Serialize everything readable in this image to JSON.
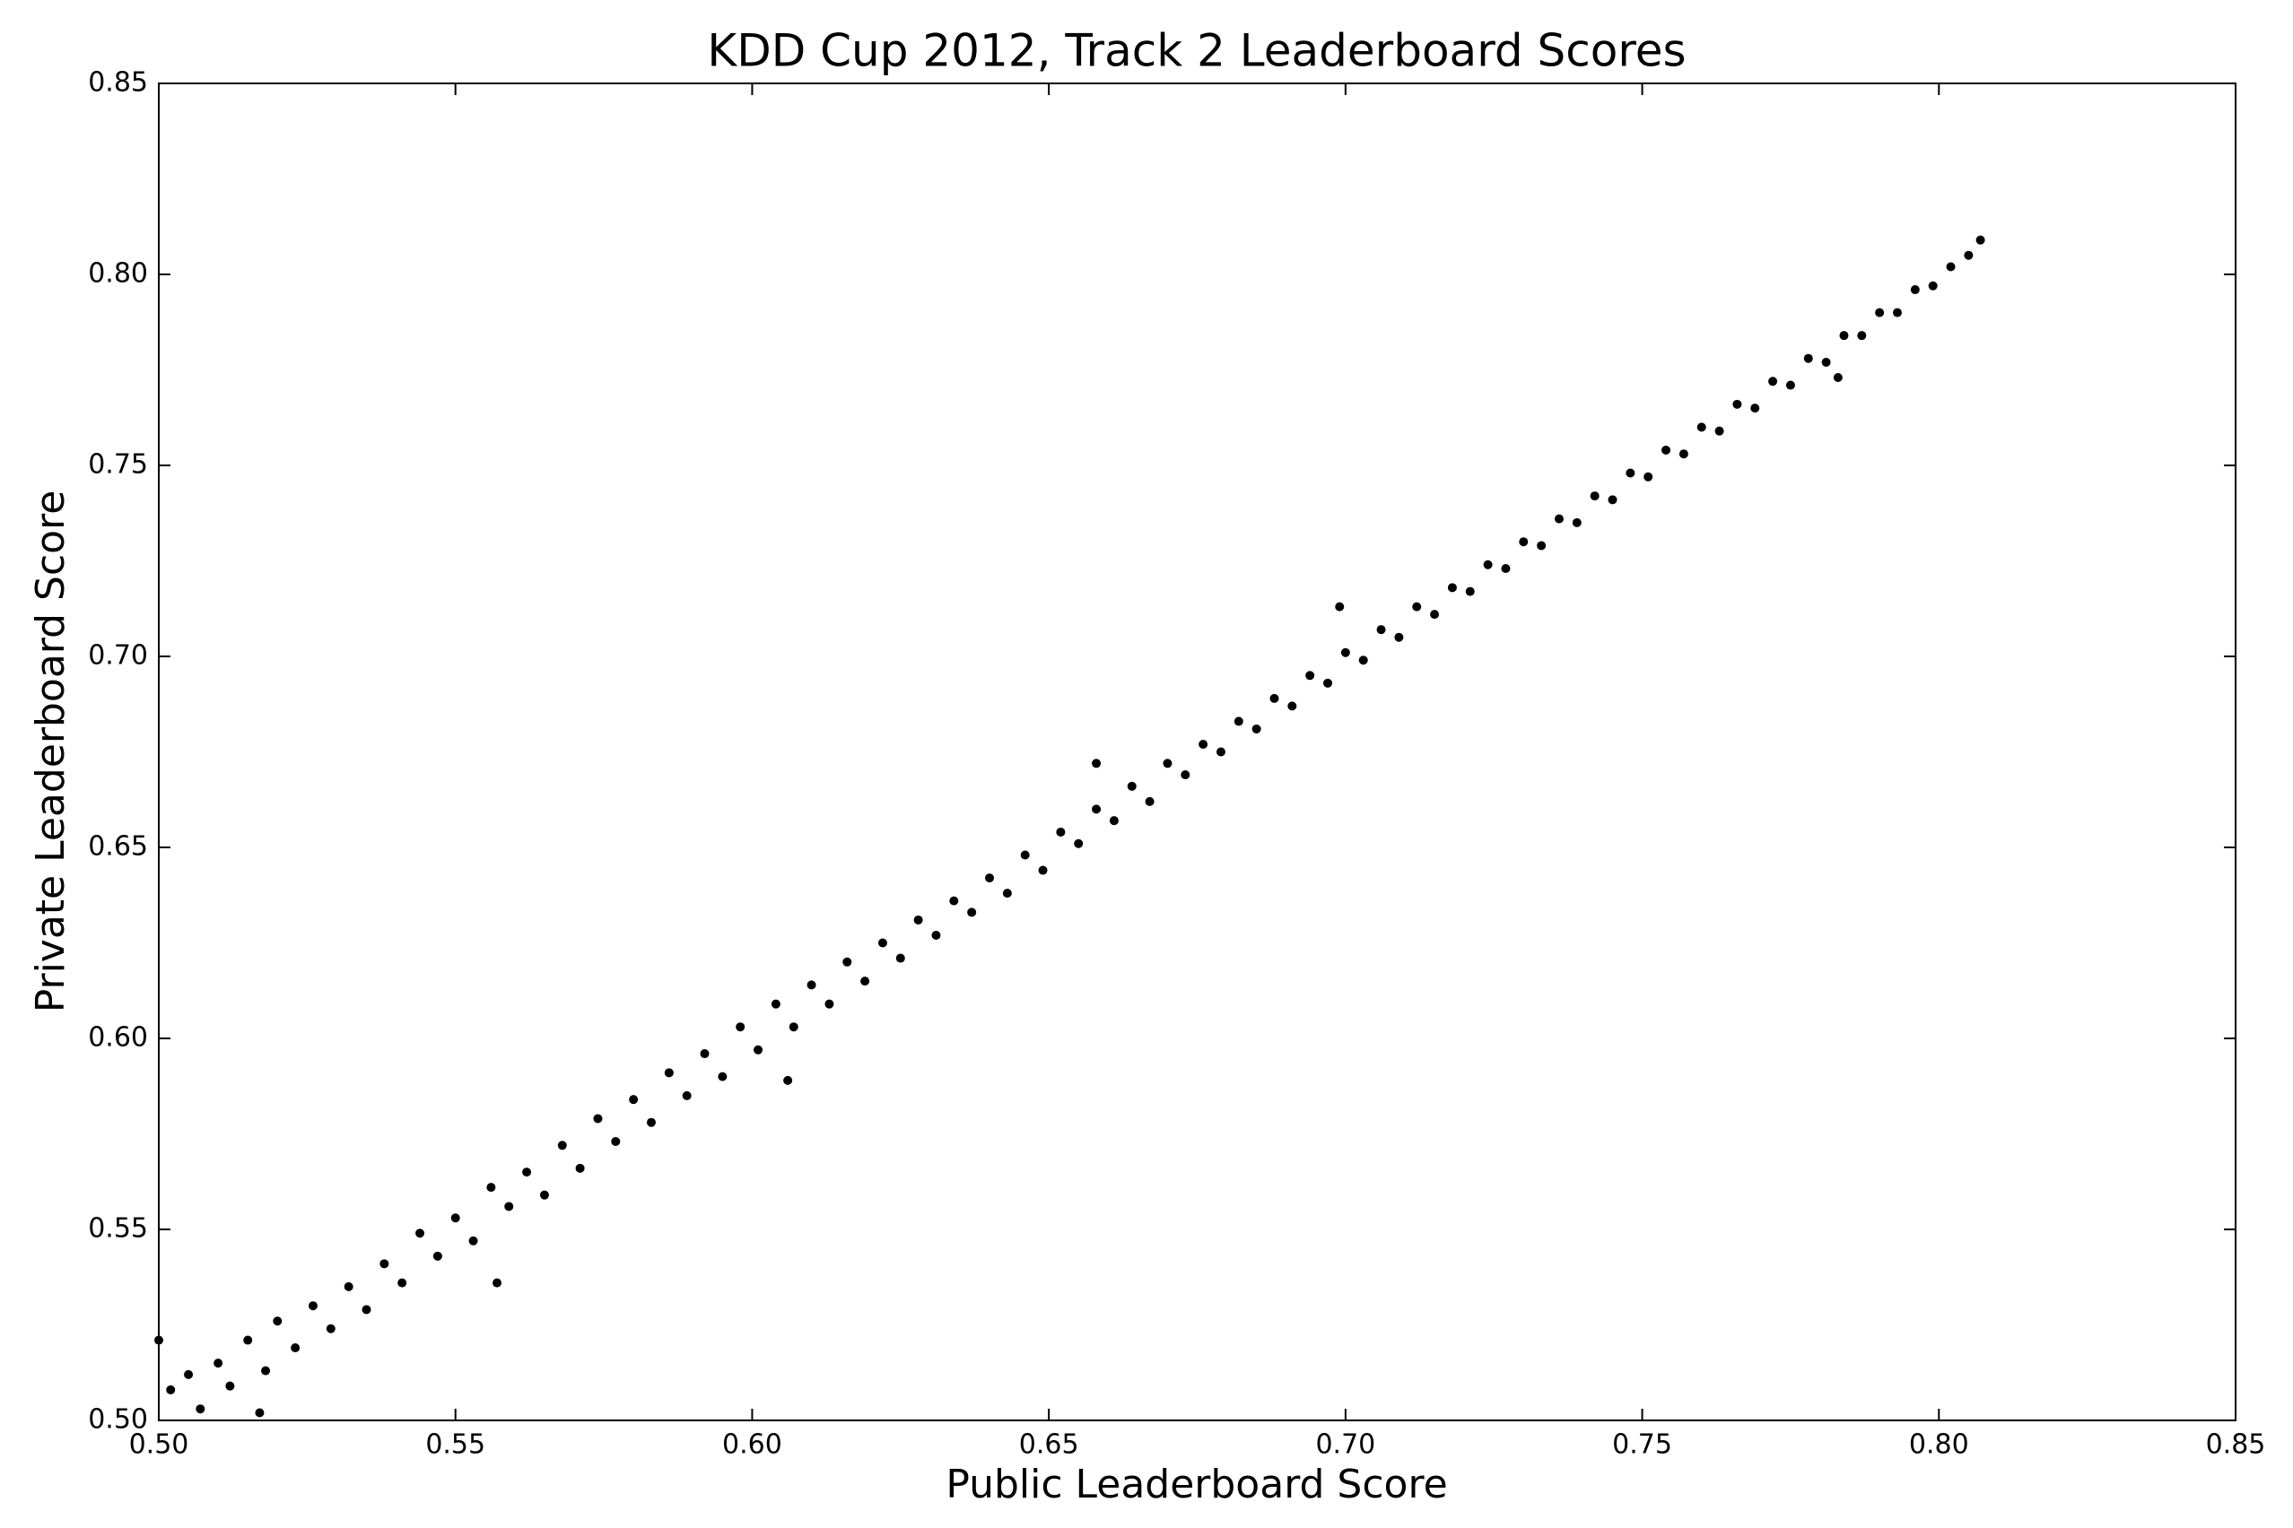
{
  "chart_data": {
    "type": "scatter",
    "title": "KDD Cup 2012, Track 2 Leaderboard Scores",
    "x_label": "Public Leaderboard Score",
    "y_label": "Private Leaderboard Score",
    "color": "#000000",
    "grid": false,
    "xlim": [
      0.5,
      0.85
    ],
    "ylim": [
      0.5,
      0.85
    ],
    "xticks": [
      {
        "value": 0.5,
        "label": "0.50"
      },
      {
        "value": 0.55,
        "label": "0.55"
      },
      {
        "value": 0.6,
        "label": "0.60"
      },
      {
        "value": 0.65,
        "label": "0.65"
      },
      {
        "value": 0.7,
        "label": "0.70"
      },
      {
        "value": 0.75,
        "label": "0.75"
      },
      {
        "value": 0.8,
        "label": "0.80"
      },
      {
        "value": 0.85,
        "label": "0.85"
      }
    ],
    "yticks": [
      {
        "value": 0.5,
        "label": "0.50"
      },
      {
        "value": 0.55,
        "label": "0.55"
      },
      {
        "value": 0.6,
        "label": "0.60"
      },
      {
        "value": 0.65,
        "label": "0.65"
      },
      {
        "value": 0.7,
        "label": "0.70"
      },
      {
        "value": 0.75,
        "label": "0.75"
      },
      {
        "value": 0.8,
        "label": "0.80"
      },
      {
        "value": 0.85,
        "label": "0.85"
      }
    ],
    "x": [
      0.502,
      0.505,
      0.507,
      0.51,
      0.512,
      0.515,
      0.518,
      0.52,
      0.523,
      0.526,
      0.529,
      0.532,
      0.535,
      0.538,
      0.541,
      0.544,
      0.547,
      0.55,
      0.553,
      0.556,
      0.559,
      0.562,
      0.565,
      0.568,
      0.571,
      0.574,
      0.577,
      0.58,
      0.583,
      0.586,
      0.589,
      0.592,
      0.595,
      0.598,
      0.601,
      0.604,
      0.607,
      0.61,
      0.613,
      0.616,
      0.619,
      0.622,
      0.625,
      0.628,
      0.631,
      0.634,
      0.637,
      0.64,
      0.643,
      0.646,
      0.649,
      0.652,
      0.655,
      0.658,
      0.661,
      0.664,
      0.667,
      0.67,
      0.673,
      0.676,
      0.679,
      0.682,
      0.685,
      0.688,
      0.691,
      0.694,
      0.697,
      0.7,
      0.703,
      0.706,
      0.709,
      0.712,
      0.715,
      0.718,
      0.721,
      0.724,
      0.727,
      0.73,
      0.733,
      0.736,
      0.739,
      0.742,
      0.745,
      0.748,
      0.751,
      0.754,
      0.757,
      0.76,
      0.763,
      0.766,
      0.769,
      0.772,
      0.775,
      0.778,
      0.781,
      0.784,
      0.787,
      0.79,
      0.793,
      0.796,
      0.799,
      0.802,
      0.805,
      0.807,
      0.5,
      0.517,
      0.557,
      0.699,
      0.783,
      0.658,
      0.606
    ],
    "values": [
      0.508,
      0.512,
      0.503,
      0.515,
      0.509,
      0.521,
      0.513,
      0.526,
      0.519,
      0.53,
      0.524,
      0.535,
      0.529,
      0.541,
      0.536,
      0.549,
      0.543,
      0.553,
      0.547,
      0.561,
      0.556,
      0.565,
      0.559,
      0.572,
      0.566,
      0.579,
      0.573,
      0.584,
      0.578,
      0.591,
      0.585,
      0.596,
      0.59,
      0.603,
      0.597,
      0.609,
      0.603,
      0.614,
      0.609,
      0.62,
      0.615,
      0.625,
      0.621,
      0.631,
      0.627,
      0.636,
      0.633,
      0.642,
      0.638,
      0.648,
      0.644,
      0.654,
      0.651,
      0.66,
      0.657,
      0.666,
      0.662,
      0.672,
      0.669,
      0.677,
      0.675,
      0.683,
      0.681,
      0.689,
      0.687,
      0.695,
      0.693,
      0.701,
      0.699,
      0.707,
      0.705,
      0.713,
      0.711,
      0.718,
      0.717,
      0.724,
      0.723,
      0.73,
      0.729,
      0.736,
      0.735,
      0.742,
      0.741,
      0.748,
      0.747,
      0.754,
      0.753,
      0.76,
      0.759,
      0.766,
      0.765,
      0.772,
      0.771,
      0.778,
      0.777,
      0.784,
      0.784,
      0.79,
      0.79,
      0.796,
      0.797,
      0.802,
      0.805,
      0.809,
      0.521,
      0.502,
      0.536,
      0.713,
      0.773,
      0.672,
      0.589
    ]
  }
}
